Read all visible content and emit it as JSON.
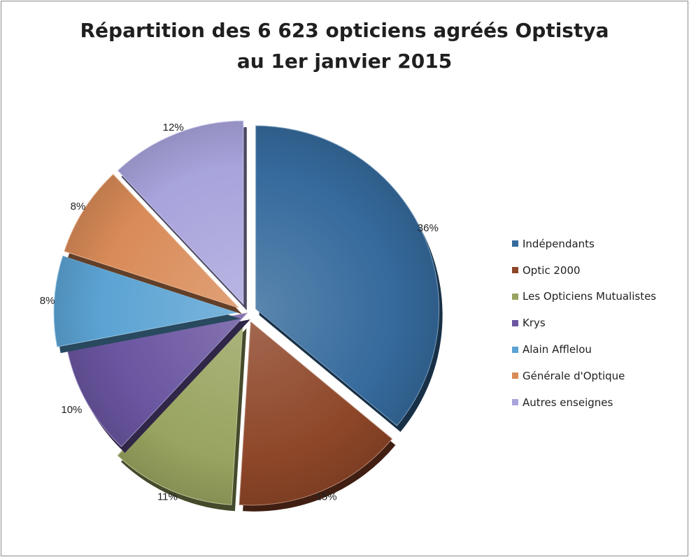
{
  "chart_data": {
    "type": "pie",
    "title_lines": [
      "Répartition des 6 623 opticiens agréés Optistya",
      "au 1er janvier 2015"
    ],
    "series": [
      {
        "name": "Indépendants",
        "value": 36,
        "label": "36%",
        "color": "#356a9c",
        "exploded": true
      },
      {
        "name": "Optic 2000",
        "value": 15,
        "label": "15%",
        "color": "#8e4628",
        "exploded": true
      },
      {
        "name": "Les Opticiens Mutualistes",
        "value": 11,
        "label": "11%",
        "color": "#98a45f",
        "exploded": true
      },
      {
        "name": "Krys",
        "value": 10,
        "label": "10%",
        "color": "#6a55a0",
        "exploded": false
      },
      {
        "name": "Alain Afflelou",
        "value": 8,
        "label": "8%",
        "color": "#5ba3d3",
        "exploded": true
      },
      {
        "name": "Générale d'Optique",
        "value": 8,
        "label": "8%",
        "color": "#d98b58",
        "exploded": true
      },
      {
        "name": "Autres enseignes",
        "value": 12,
        "label": "12%",
        "color": "#a8a4dc",
        "exploded": true
      }
    ],
    "legend_position": "right"
  }
}
